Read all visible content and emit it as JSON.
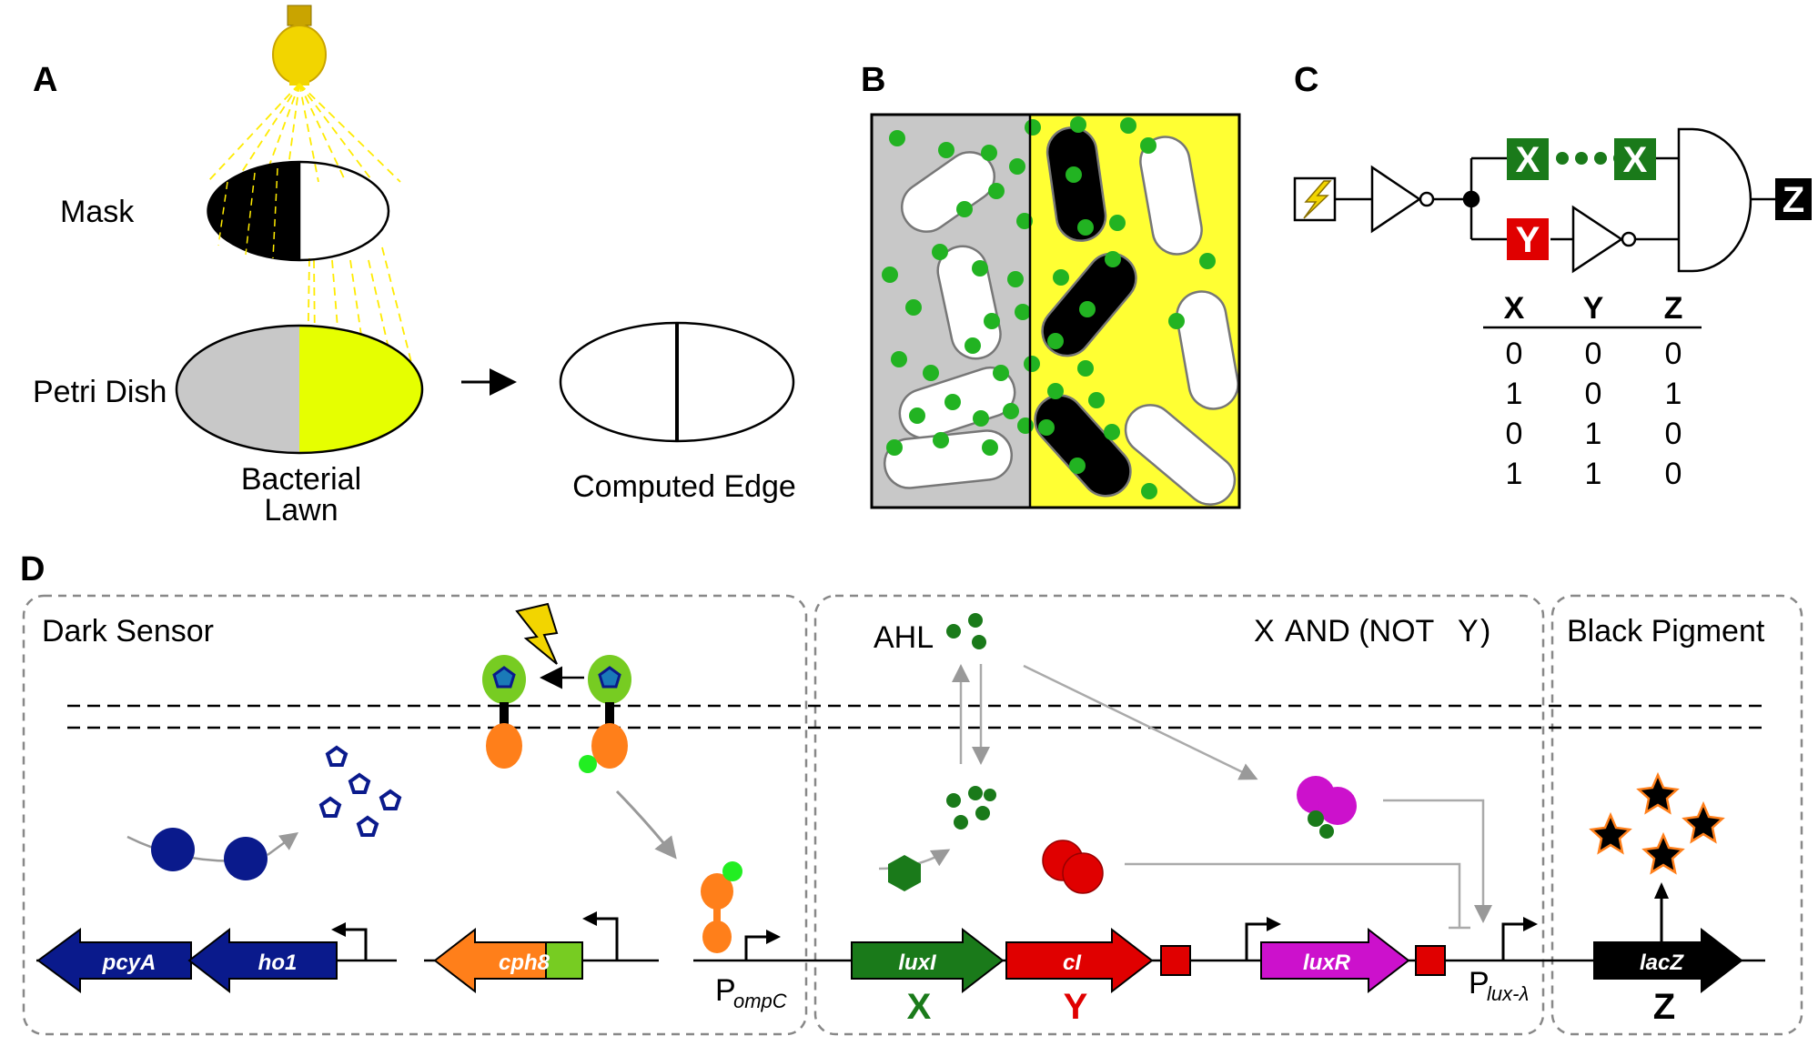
{
  "panels": {
    "a": "A",
    "b": "B",
    "c": "C",
    "d": "D"
  },
  "panel_a": {
    "mask": "Mask",
    "petri_dish": "Petri Dish",
    "bacterial_1": "Bacterial",
    "bacterial_2": "Lawn",
    "computed_edge": "Computed Edge"
  },
  "panel_c": {
    "gate_x": "X",
    "gate_y": "Y",
    "gate_z": "Z",
    "table_headers": [
      "X",
      "Y",
      "Z"
    ],
    "table_rows": [
      [
        "0",
        "0",
        "0"
      ],
      [
        "1",
        "0",
        "1"
      ],
      [
        "0",
        "1",
        "0"
      ],
      [
        "1",
        "1",
        "0"
      ]
    ]
  },
  "panel_d": {
    "dark_sensor": "Dark Sensor",
    "logic_x": "X",
    "logic_and": "AND (NOT",
    "logic_y": "Y",
    "logic_close": ")",
    "black_pigment": "Black Pigment",
    "ahl": "AHL",
    "genes": {
      "pcyA": "pcyA",
      "ho1": "ho1",
      "cph8": "cph8",
      "luxI": "luxI",
      "cI": "cI",
      "luxR": "luxR",
      "lacZ": "lacZ"
    },
    "p_ompc_main": "P",
    "p_ompc_sub": "ompC",
    "p_lux_main": "P",
    "p_lux_sub": "lux-λ",
    "label_x": "X",
    "label_y": "Y",
    "label_z": "Z"
  },
  "colors": {
    "x_green": "#1a7a1a",
    "y_red": "#e00000",
    "yellow": "#ffff33",
    "gray": "#c8c8c8",
    "dot_green": "#22b322",
    "navy": "#0a1a8c",
    "orange": "#ff7f1a",
    "magenta": "#cc11cc"
  }
}
